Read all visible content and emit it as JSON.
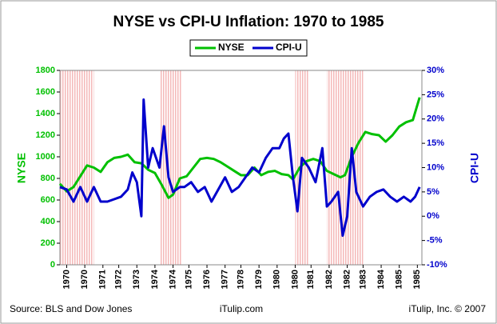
{
  "chart_data": {
    "type": "line",
    "title": "NYSE vs CPI-U Inflation: 1970 to 1985",
    "ylabel": "NYSE",
    "y2label": "CPI-U",
    "annotations": [
      "Source: BLS and Dow Jones",
      "iTulip.com",
      "iTulip, Inc. © 2007"
    ],
    "legend": "top",
    "shaded_ranges": [
      [
        1970.0,
        1971.5
      ],
      [
        1974.4,
        1975.4
      ],
      [
        1980.4,
        1981.0
      ],
      [
        1981.8,
        1983.4
      ]
    ],
    "shade_color": "#f4b8b8",
    "xlim": [
      1970.0,
      1986.0
    ],
    "xticks": [
      {
        "value": 1970.3,
        "label": "1970"
      },
      {
        "value": 1971.1,
        "label": "1970"
      },
      {
        "value": 1971.9,
        "label": "1971"
      },
      {
        "value": 1972.6,
        "label": "1972"
      },
      {
        "value": 1973.4,
        "label": "1973"
      },
      {
        "value": 1974.2,
        "label": "1974"
      },
      {
        "value": 1975.0,
        "label": "1974"
      },
      {
        "value": 1975.7,
        "label": "1975"
      },
      {
        "value": 1976.5,
        "label": "1976"
      },
      {
        "value": 1977.3,
        "label": "1977"
      },
      {
        "value": 1978.0,
        "label": "1978"
      },
      {
        "value": 1978.8,
        "label": "1979"
      },
      {
        "value": 1979.6,
        "label": "1980"
      },
      {
        "value": 1980.4,
        "label": "1980"
      },
      {
        "value": 1981.1,
        "label": "1981"
      },
      {
        "value": 1981.9,
        "label": "1982"
      },
      {
        "value": 1982.7,
        "label": "1982"
      },
      {
        "value": 1983.4,
        "label": "1983"
      },
      {
        "value": 1984.2,
        "label": "1984"
      },
      {
        "value": 1985.0,
        "label": "1985"
      },
      {
        "value": 1985.8,
        "label": "1985"
      }
    ],
    "ylim": [
      0,
      1800
    ],
    "yticks": [
      0,
      200,
      400,
      600,
      800,
      1000,
      1200,
      1400,
      1600,
      1800
    ],
    "y2lim": [
      -10,
      30
    ],
    "y2ticks": [
      {
        "value": -10,
        "label": "-10%"
      },
      {
        "value": -5,
        "label": "-5%"
      },
      {
        "value": 0,
        "label": "0%"
      },
      {
        "value": 5,
        "label": "5%"
      },
      {
        "value": 10,
        "label": "10%"
      },
      {
        "value": 15,
        "label": "15%"
      },
      {
        "value": 20,
        "label": "20%"
      },
      {
        "value": 25,
        "label": "25%"
      },
      {
        "value": 30,
        "label": "30%"
      }
    ],
    "series": [
      {
        "name": "NYSE",
        "color": "#00c000",
        "x": [
          1970.0,
          1970.3,
          1970.6,
          1970.9,
          1971.2,
          1971.5,
          1971.8,
          1972.1,
          1972.4,
          1972.7,
          1973.0,
          1973.3,
          1973.6,
          1973.9,
          1974.2,
          1974.5,
          1974.8,
          1975.0,
          1975.3,
          1975.6,
          1975.9,
          1976.2,
          1976.5,
          1976.8,
          1977.1,
          1977.4,
          1977.7,
          1978.0,
          1978.3,
          1978.6,
          1978.9,
          1979.2,
          1979.5,
          1979.8,
          1980.1,
          1980.3,
          1980.6,
          1980.9,
          1981.2,
          1981.5,
          1981.8,
          1982.1,
          1982.4,
          1982.6,
          1982.9,
          1983.2,
          1983.5,
          1983.8,
          1984.1,
          1984.4,
          1984.7,
          1985.0,
          1985.3,
          1985.6,
          1985.9
        ],
        "values": [
          750,
          680,
          720,
          820,
          920,
          900,
          860,
          950,
          990,
          1000,
          1020,
          950,
          940,
          880,
          850,
          740,
          620,
          650,
          800,
          820,
          900,
          980,
          990,
          980,
          950,
          910,
          870,
          830,
          830,
          900,
          830,
          860,
          870,
          840,
          830,
          790,
          900,
          960,
          980,
          960,
          870,
          840,
          810,
          830,
          1000,
          1130,
          1230,
          1210,
          1200,
          1140,
          1200,
          1280,
          1320,
          1340,
          1550
        ]
      },
      {
        "name": "CPI-U",
        "color": "#0000cc",
        "axis": "y2",
        "x": [
          1970.0,
          1970.3,
          1970.6,
          1970.9,
          1971.2,
          1971.5,
          1971.8,
          1972.1,
          1972.4,
          1972.7,
          1973.0,
          1973.2,
          1973.4,
          1973.6,
          1973.7,
          1973.9,
          1974.1,
          1974.4,
          1974.6,
          1974.8,
          1975.0,
          1975.3,
          1975.5,
          1975.8,
          1976.1,
          1976.4,
          1976.7,
          1977.0,
          1977.3,
          1977.6,
          1977.9,
          1978.2,
          1978.5,
          1978.8,
          1979.1,
          1979.4,
          1979.7,
          1979.9,
          1980.1,
          1980.3,
          1980.5,
          1980.7,
          1981.0,
          1981.3,
          1981.6,
          1981.8,
          1982.0,
          1982.3,
          1982.5,
          1982.7,
          1982.9,
          1983.1,
          1983.4,
          1983.7,
          1984.0,
          1984.3,
          1984.6,
          1984.9,
          1985.2,
          1985.5,
          1985.7,
          1985.9
        ],
        "values": [
          6,
          5.5,
          3,
          6,
          3,
          6,
          3,
          3,
          3.5,
          4,
          5.5,
          9,
          7,
          0,
          24,
          10,
          14,
          10,
          18.5,
          8,
          5,
          6,
          6,
          7,
          5,
          6,
          3,
          5.5,
          8,
          5,
          6,
          8,
          10,
          9,
          12,
          14,
          14,
          16,
          17,
          8,
          1,
          12,
          10,
          7,
          14,
          2,
          3,
          5,
          -4,
          0,
          14,
          5,
          2,
          4,
          5,
          5.5,
          4,
          3,
          4,
          3,
          4,
          6
        ]
      }
    ]
  }
}
